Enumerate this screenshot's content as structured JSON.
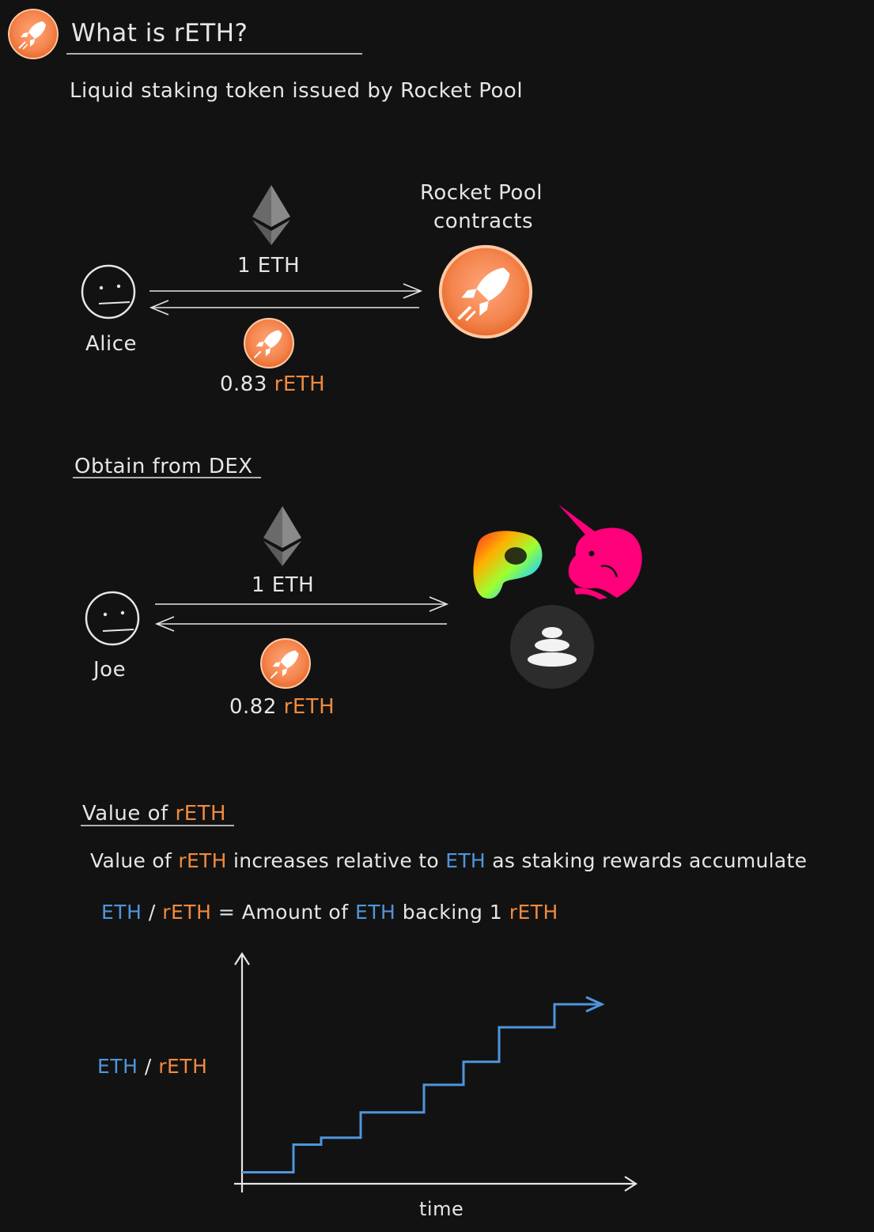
{
  "header": {
    "title": "What is rETH?",
    "subtitle": "Liquid staking token issued by Rocket Pool"
  },
  "mint": {
    "user_label": "Alice",
    "eth_amount": "1 ETH",
    "reth_amount_number": "0.83",
    "reth_token": "rETH",
    "contract_label_line1": "Rocket Pool",
    "contract_label_line2": "contracts"
  },
  "dex": {
    "heading": "Obtain from DEX",
    "user_label": "Joe",
    "eth_amount": "1 ETH",
    "reth_amount_number": "0.82",
    "reth_token": "rETH",
    "dex_logos": [
      "curve-logo",
      "uniswap-logo",
      "balancer-logo"
    ]
  },
  "value": {
    "heading_prefix": "Value of",
    "heading_token": "rETH",
    "line1_a": "Value of",
    "line1_b": "rETH",
    "line1_c": "increases relative to",
    "line1_d": "ETH",
    "line1_e": "as staking rewards accumulate",
    "formula_eth": "ETH",
    "formula_slash": "/",
    "formula_reth": "rETH",
    "formula_eq": "= Amount of",
    "formula_eth2": "ETH",
    "formula_backing": "backing 1",
    "formula_reth2": "rETH"
  },
  "chart_data": {
    "type": "line",
    "ylabel_eth": "ETH",
    "ylabel_slash": "/",
    "ylabel_reth": "rETH",
    "xlabel": "time",
    "shape": "monotonic step increase",
    "series": [
      {
        "x": [
          0,
          1.3,
          1.3,
          2.0,
          2.0,
          3.0,
          3.0,
          4.6,
          4.6,
          5.6,
          5.6,
          6.5,
          6.5,
          7.9,
          7.9,
          9.1
        ],
        "y": [
          0,
          0,
          1.2,
          1.2,
          1.5,
          1.5,
          2.6,
          2.6,
          3.8,
          3.8,
          4.8,
          4.8,
          6.3,
          6.3,
          7.3,
          7.3
        ]
      }
    ],
    "xlim": [
      0,
      10
    ],
    "ylim": [
      -0.5,
      9.5
    ],
    "colors": {
      "line": "#4f95dc",
      "axes": "#e6e6e6"
    }
  },
  "colors": {
    "background": "#121212",
    "accent": "#f08a3e",
    "eth_blue": "#4f95dc",
    "text": "#e6e6e6"
  }
}
